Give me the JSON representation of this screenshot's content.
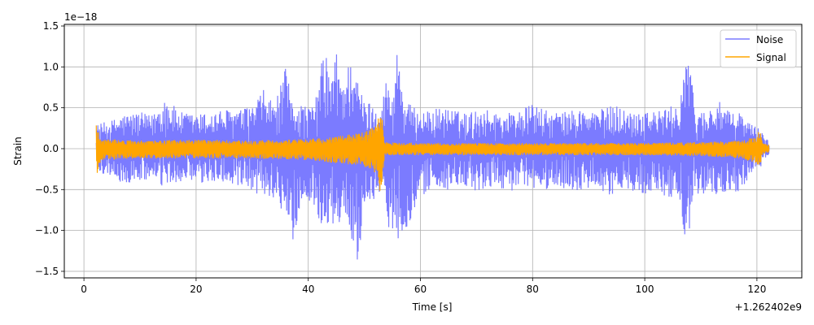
{
  "chart_data": {
    "type": "line",
    "xlabel": "Time [s]",
    "ylabel": "Strain",
    "x_offset_label": "+1.262402e9",
    "y_scale_label": "1e−18",
    "xlim": [
      -3.5,
      128
    ],
    "ylim": [
      -1.58,
      1.52
    ],
    "x_ticks": [
      0,
      20,
      40,
      60,
      80,
      100,
      120
    ],
    "x_tick_labels": [
      "0",
      "20",
      "40",
      "60",
      "80",
      "100",
      "120"
    ],
    "y_ticks": [
      -1.5,
      -1.0,
      -0.5,
      0.0,
      0.5,
      1.0,
      1.5
    ],
    "y_tick_labels": [
      "−1.5",
      "−1.0",
      "−0.5",
      "0.0",
      "0.5",
      "1.0",
      "1.5"
    ],
    "grid": true,
    "legend": {
      "position": "top-right"
    },
    "series": [
      {
        "name": "Noise",
        "color": "#7b7bff",
        "x_range": [
          2.2,
          122.2
        ],
        "envelope": [
          [
            2.5,
            0.3,
            -0.3
          ],
          [
            5,
            0.35,
            -0.33
          ],
          [
            7,
            0.42,
            -0.45
          ],
          [
            10,
            0.45,
            -0.4
          ],
          [
            12,
            0.4,
            -0.38
          ],
          [
            14.5,
            0.65,
            -0.5
          ],
          [
            17,
            0.45,
            -0.4
          ],
          [
            20,
            0.42,
            -0.45
          ],
          [
            23,
            0.45,
            -0.42
          ],
          [
            25,
            0.48,
            -0.4
          ],
          [
            28,
            0.48,
            -0.52
          ],
          [
            30,
            0.52,
            -0.55
          ],
          [
            32,
            0.72,
            -0.58
          ],
          [
            34,
            0.55,
            -0.6
          ],
          [
            35,
            0.75,
            -0.75
          ],
          [
            36,
            1.0,
            -1.15
          ],
          [
            37,
            0.6,
            -1.2
          ],
          [
            39,
            0.55,
            -0.62
          ],
          [
            41,
            0.5,
            -0.7
          ],
          [
            43,
            1.3,
            -1.05
          ],
          [
            44,
            0.8,
            -0.9
          ],
          [
            45,
            1.2,
            -1.0
          ],
          [
            46,
            0.85,
            -0.85
          ],
          [
            47,
            1.0,
            -0.95
          ],
          [
            48,
            1.3,
            -1.2
          ],
          [
            49,
            0.75,
            -1.42
          ],
          [
            50,
            0.6,
            -0.7
          ],
          [
            52,
            0.55,
            -0.6
          ],
          [
            53,
            0.5,
            -0.5
          ],
          [
            54,
            0.9,
            -0.95
          ],
          [
            55,
            0.6,
            -1.0
          ],
          [
            56,
            1.4,
            -1.1
          ],
          [
            57,
            0.6,
            -1.05
          ],
          [
            59,
            0.5,
            -0.75
          ],
          [
            61,
            0.45,
            -0.55
          ],
          [
            63,
            0.5,
            -0.45
          ],
          [
            65,
            0.5,
            -0.52
          ],
          [
            67,
            0.45,
            -0.48
          ],
          [
            69,
            0.45,
            -0.52
          ],
          [
            71,
            0.5,
            -0.55
          ],
          [
            73,
            0.45,
            -0.45
          ],
          [
            75,
            0.45,
            -0.5
          ],
          [
            77,
            0.45,
            -0.52
          ],
          [
            80,
            0.55,
            -0.5
          ],
          [
            83,
            0.45,
            -0.5
          ],
          [
            86,
            0.45,
            -0.48
          ],
          [
            88,
            0.5,
            -0.55
          ],
          [
            90,
            0.45,
            -0.5
          ],
          [
            93,
            0.5,
            -0.55
          ],
          [
            95,
            0.55,
            -0.6
          ],
          [
            97,
            0.45,
            -0.5
          ],
          [
            100,
            0.5,
            -0.55
          ],
          [
            102,
            0.45,
            -0.5
          ],
          [
            104,
            0.5,
            -0.62
          ],
          [
            106,
            0.55,
            -0.55
          ],
          [
            107.5,
            1.3,
            -1.22
          ],
          [
            109,
            0.5,
            -0.55
          ],
          [
            111,
            0.45,
            -0.55
          ],
          [
            113,
            0.6,
            -0.6
          ],
          [
            115,
            0.45,
            -0.5
          ],
          [
            117,
            0.45,
            -0.55
          ],
          [
            119,
            0.3,
            -0.3
          ],
          [
            120.5,
            0.25,
            -0.25
          ],
          [
            122,
            0.1,
            -0.1
          ]
        ]
      },
      {
        "name": "Signal",
        "color": "#ffa500",
        "x_range": [
          2.2,
          122.2
        ],
        "envelope": [
          [
            2.3,
            0.3,
            -0.32
          ],
          [
            3,
            0.12,
            -0.14
          ],
          [
            10,
            0.1,
            -0.12
          ],
          [
            20,
            0.11,
            -0.12
          ],
          [
            30,
            0.1,
            -0.12
          ],
          [
            40,
            0.12,
            -0.14
          ],
          [
            45,
            0.15,
            -0.18
          ],
          [
            50,
            0.2,
            -0.22
          ],
          [
            52,
            0.28,
            -0.3
          ],
          [
            53,
            0.58,
            -0.6
          ],
          [
            53.6,
            0.08,
            -0.08
          ],
          [
            60,
            0.07,
            -0.08
          ],
          [
            70,
            0.07,
            -0.08
          ],
          [
            80,
            0.07,
            -0.08
          ],
          [
            90,
            0.07,
            -0.08
          ],
          [
            100,
            0.07,
            -0.08
          ],
          [
            110,
            0.08,
            -0.09
          ],
          [
            117,
            0.1,
            -0.12
          ],
          [
            120,
            0.15,
            -0.18
          ],
          [
            120.5,
            0.28,
            -0.3
          ],
          [
            121,
            0.08,
            -0.08
          ],
          [
            122,
            0.05,
            -0.05
          ]
        ]
      }
    ]
  }
}
